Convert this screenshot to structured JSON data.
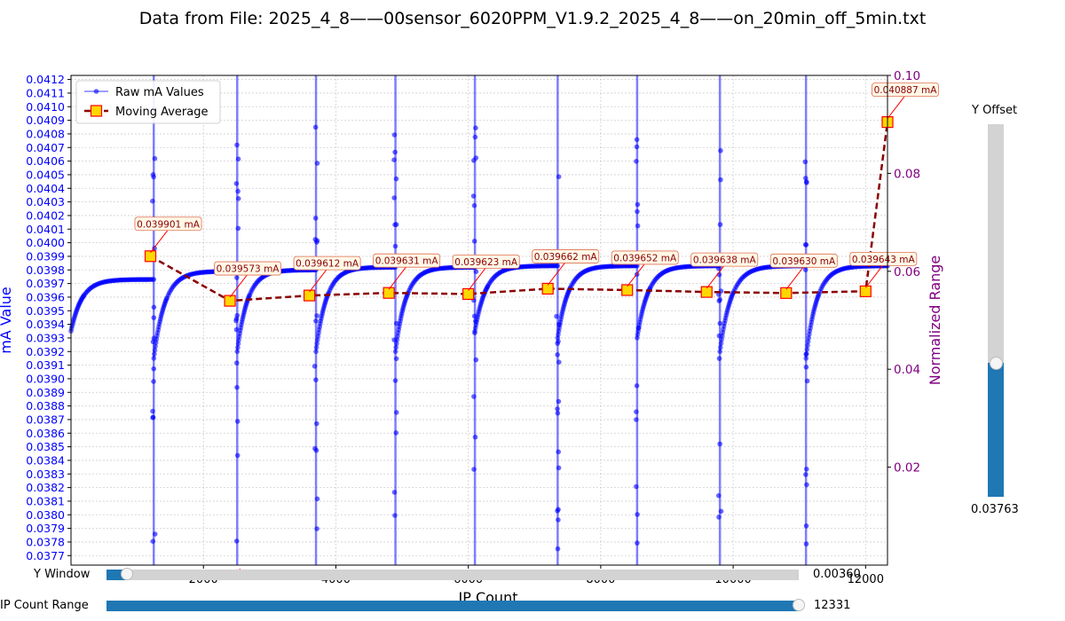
{
  "title": "Data from File: 2025_4_8——00sensor_6020PPM_V1.9.2_2025_4_8——on_20min_off_5min.txt",
  "chart_data": {
    "type": "line",
    "xlabel": "IP Count",
    "ylabel": "mA Value",
    "y2label": "Normalized Range",
    "xlim": [
      0,
      12331
    ],
    "ylim": [
      0.03763,
      0.04123
    ],
    "y2lim": [
      0.0,
      0.1
    ],
    "x_ticks": [
      2000,
      4000,
      6000,
      8000,
      10000,
      12000
    ],
    "y_ticks": [
      "0.0377",
      "0.0378",
      "0.0379",
      "0.0380",
      "0.0381",
      "0.0382",
      "0.0383",
      "0.0384",
      "0.0385",
      "0.0386",
      "0.0387",
      "0.0388",
      "0.0389",
      "0.0390",
      "0.0391",
      "0.0392",
      "0.0393",
      "0.0394",
      "0.0395",
      "0.0396",
      "0.0397",
      "0.0398",
      "0.0399",
      "0.0400",
      "0.0401",
      "0.0402",
      "0.0403",
      "0.0404",
      "0.0405",
      "0.0406",
      "0.0407",
      "0.0408",
      "0.0409",
      "0.0410",
      "0.0411",
      "0.0412"
    ],
    "y2_ticks": [
      0.02,
      0.04,
      0.06,
      0.08,
      0.1
    ],
    "y2_tick_labels": [
      "0.02",
      "0.04",
      "0.06",
      "0.08",
      "0.10"
    ],
    "grid": true,
    "legend_position": "top-left",
    "series": [
      {
        "name": "Raw mA Values",
        "color": "#0000ff",
        "marker": "circle",
        "cycle_starts": [
          0,
          1250,
          2510,
          3700,
          4900,
          6100,
          7350,
          8550,
          9800,
          11100
        ],
        "cycle_ends": [
          1250,
          2510,
          3700,
          4900,
          6100,
          7350,
          8550,
          9800,
          11100,
          12331
        ],
        "cycle_min": [
          0.03935,
          0.03915,
          0.0392,
          0.0392,
          0.0392,
          0.03935,
          0.0393,
          0.0393,
          0.0392,
          0.03915
        ],
        "cycle_plateau": [
          0.03973,
          0.03979,
          0.0398,
          0.03982,
          0.03982,
          0.03983,
          0.03983,
          0.03983,
          0.03983,
          0.03983
        ]
      },
      {
        "name": "Moving Average",
        "color": "#8b0000",
        "marker_face": "#ffd700",
        "marker_edge": "#ff0000",
        "x": [
          1200,
          2400,
          3600,
          4800,
          6000,
          7200,
          8400,
          9600,
          10800,
          12000,
          12331
        ],
        "y": [
          0.039901,
          0.039573,
          0.039612,
          0.039631,
          0.039623,
          0.039662,
          0.039652,
          0.039638,
          0.03963,
          0.039643,
          0.040887
        ],
        "labels": [
          "0.039901 mA",
          "0.039573 mA",
          "0.039612 mA",
          "0.039631 mA",
          "0.039623 mA",
          "0.039662 mA",
          "0.039652 mA",
          "0.039638 mA",
          "0.039630 mA",
          "0.039643 mA",
          "0.040887 mA"
        ]
      }
    ]
  },
  "controls": {
    "y_window": {
      "label": "Y Window",
      "value": "0.00360",
      "fraction": 0.03
    },
    "ip_count_range": {
      "label": "IP Count Range",
      "value": "12331",
      "fraction": 1.0
    },
    "y_offset": {
      "label": "Y Offset",
      "value": "0.03763",
      "fraction": 0.36
    }
  }
}
